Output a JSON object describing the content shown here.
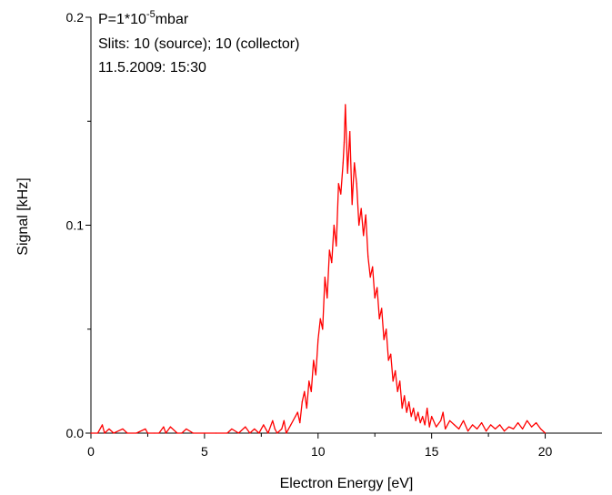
{
  "chart_data": {
    "type": "line",
    "xlabel": "Electron Energy [eV]",
    "ylabel": "Signal [kHz]",
    "xlim": [
      0,
      22.5
    ],
    "ylim": [
      0,
      0.2
    ],
    "x_ticks": [
      0,
      5,
      10,
      15,
      20
    ],
    "x_tick_labels": [
      "0",
      "5",
      "10",
      "15",
      "20"
    ],
    "y_ticks": [
      0,
      0.1,
      0.2
    ],
    "y_tick_labels": [
      "0.0",
      "0.1",
      "0.2"
    ],
    "grid": false,
    "legend": "none",
    "annotations": {
      "pressure_prefix": "P=1*10",
      "pressure_exponent": "-5",
      "pressure_unit": "mbar",
      "slits": "Slits: 10 (source); 10 (collector)",
      "date": "11.5.2009: 15:30"
    },
    "series": [
      {
        "color": "#ff0000",
        "x": [
          0.0,
          0.3,
          0.5,
          0.6,
          0.8,
          1.0,
          1.4,
          1.6,
          2.0,
          2.4,
          2.5,
          2.8,
          3.0,
          3.2,
          3.3,
          3.5,
          3.8,
          4.0,
          4.2,
          4.5,
          5.0,
          5.5,
          6.0,
          6.2,
          6.5,
          6.8,
          7.0,
          7.2,
          7.4,
          7.6,
          7.8,
          8.0,
          8.1,
          8.2,
          8.4,
          8.5,
          8.6,
          8.8,
          9.0,
          9.1,
          9.2,
          9.3,
          9.4,
          9.5,
          9.6,
          9.7,
          9.8,
          9.9,
          10.0,
          10.1,
          10.2,
          10.3,
          10.4,
          10.5,
          10.6,
          10.7,
          10.8,
          10.9,
          11.0,
          11.1,
          11.15,
          11.2,
          11.3,
          11.4,
          11.5,
          11.6,
          11.7,
          11.8,
          11.9,
          12.0,
          12.1,
          12.2,
          12.3,
          12.4,
          12.5,
          12.6,
          12.7,
          12.8,
          12.9,
          13.0,
          13.1,
          13.2,
          13.3,
          13.4,
          13.5,
          13.6,
          13.7,
          13.8,
          13.9,
          14.0,
          14.1,
          14.2,
          14.3,
          14.4,
          14.5,
          14.6,
          14.7,
          14.8,
          14.9,
          15.0,
          15.2,
          15.4,
          15.5,
          15.6,
          15.8,
          16.0,
          16.2,
          16.4,
          16.6,
          16.8,
          17.0,
          17.2,
          17.4,
          17.6,
          17.8,
          18.0,
          18.2,
          18.4,
          18.6,
          18.8,
          19.0,
          19.2,
          19.4,
          19.6,
          19.8,
          20.0
        ],
        "y": [
          0.0,
          0.0,
          0.004,
          0.0,
          0.002,
          0.0,
          0.002,
          0.0,
          0.0,
          0.002,
          0.0,
          0.0,
          0.0,
          0.003,
          0.0,
          0.003,
          0.0,
          0.0,
          0.002,
          0.0,
          0.0,
          0.0,
          0.0,
          0.002,
          0.0,
          0.003,
          0.0,
          0.002,
          0.0,
          0.004,
          0.0,
          0.006,
          0.002,
          0.0,
          0.002,
          0.006,
          0.0,
          0.004,
          0.008,
          0.01,
          0.005,
          0.015,
          0.02,
          0.012,
          0.025,
          0.02,
          0.035,
          0.028,
          0.045,
          0.055,
          0.05,
          0.075,
          0.065,
          0.088,
          0.082,
          0.1,
          0.09,
          0.12,
          0.115,
          0.13,
          0.14,
          0.158,
          0.125,
          0.145,
          0.11,
          0.13,
          0.12,
          0.1,
          0.108,
          0.095,
          0.105,
          0.085,
          0.075,
          0.08,
          0.065,
          0.07,
          0.055,
          0.06,
          0.045,
          0.05,
          0.035,
          0.038,
          0.025,
          0.03,
          0.02,
          0.025,
          0.012,
          0.018,
          0.01,
          0.015,
          0.008,
          0.012,
          0.006,
          0.01,
          0.005,
          0.008,
          0.004,
          0.012,
          0.003,
          0.008,
          0.003,
          0.006,
          0.01,
          0.002,
          0.006,
          0.004,
          0.002,
          0.006,
          0.001,
          0.004,
          0.002,
          0.005,
          0.001,
          0.004,
          0.002,
          0.004,
          0.001,
          0.003,
          0.002,
          0.005,
          0.002,
          0.006,
          0.003,
          0.005,
          0.002,
          0.0
        ]
      }
    ]
  }
}
